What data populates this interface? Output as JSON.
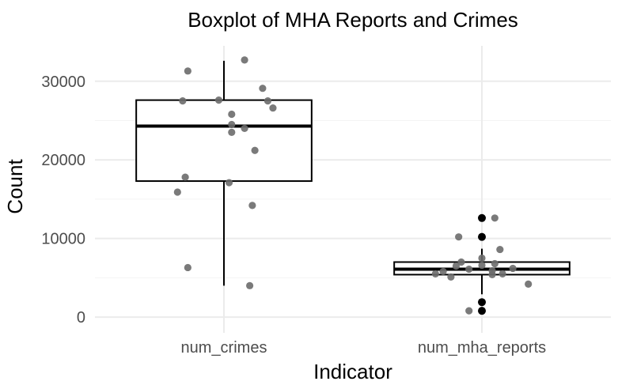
{
  "chart_data": {
    "type": "boxplot",
    "title": "Boxplot of MHA Reports and Crimes",
    "xlabel": "Indicator",
    "ylabel": "Count",
    "ylim": [
      -2000,
      34500
    ],
    "yticks": [
      0,
      10000,
      20000,
      30000
    ],
    "grid": true,
    "categories": [
      "num_crimes",
      "num_mha_reports"
    ],
    "boxes": [
      {
        "name": "num_crimes",
        "whisker_low": 4000,
        "q1": 17300,
        "median": 24300,
        "q3": 27600,
        "whisker_high": 32600,
        "outliers": [],
        "points": [
          {
            "dx": -0.14,
            "y": 31300
          },
          {
            "dx": -0.16,
            "y": 27500
          },
          {
            "dx": -0.15,
            "y": 17800
          },
          {
            "dx": -0.18,
            "y": 15900
          },
          {
            "dx": -0.14,
            "y": 6300
          },
          {
            "dx": -0.02,
            "y": 27600
          },
          {
            "dx": 0.03,
            "y": 25800
          },
          {
            "dx": 0.03,
            "y": 24500
          },
          {
            "dx": 0.03,
            "y": 23500
          },
          {
            "dx": 0.08,
            "y": 24000
          },
          {
            "dx": 0.08,
            "y": 32700
          },
          {
            "dx": 0.15,
            "y": 29100
          },
          {
            "dx": 0.17,
            "y": 27500
          },
          {
            "dx": 0.19,
            "y": 26600
          },
          {
            "dx": 0.12,
            "y": 21200
          },
          {
            "dx": 0.02,
            "y": 17100
          },
          {
            "dx": 0.11,
            "y": 14200
          },
          {
            "dx": 0.1,
            "y": 4000
          }
        ]
      },
      {
        "name": "num_mha_reports",
        "whisker_low": 2900,
        "q1": 5400,
        "median": 6100,
        "q3": 7000,
        "whisker_high": 8700,
        "outliers": [
          12600,
          10200,
          1900,
          800
        ],
        "points": [
          {
            "dx": -0.09,
            "y": 10200
          },
          {
            "dx": -0.18,
            "y": 5500
          },
          {
            "dx": -0.15,
            "y": 5800
          },
          {
            "dx": -0.12,
            "y": 5100
          },
          {
            "dx": -0.1,
            "y": 6500
          },
          {
            "dx": -0.08,
            "y": 7000
          },
          {
            "dx": -0.05,
            "y": 6100
          },
          {
            "dx": 0,
            "y": 7500
          },
          {
            "dx": 0,
            "y": 6600
          },
          {
            "dx": 0.04,
            "y": 5900
          },
          {
            "dx": 0.04,
            "y": 5400
          },
          {
            "dx": 0.05,
            "y": 6800
          },
          {
            "dx": 0.08,
            "y": 5500
          },
          {
            "dx": 0.12,
            "y": 6200
          },
          {
            "dx": 0.07,
            "y": 8600
          },
          {
            "dx": 0.05,
            "y": 12600
          },
          {
            "dx": 0.18,
            "y": 4200
          },
          {
            "dx": -0.05,
            "y": 800
          }
        ]
      }
    ],
    "colors": {
      "box_stroke": "#000000",
      "box_fill": "#ffffff",
      "point": "#6b6b6b",
      "outlier": "#000000",
      "grid_major": "#ebebeb",
      "grid_minor": "#f4f4f4"
    }
  }
}
